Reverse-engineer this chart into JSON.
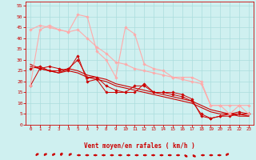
{
  "bg_color": "#cff0f0",
  "grid_color": "#aadddd",
  "xlabel": "Vent moyen/en rafales ( km/h )",
  "xlabel_color": "#cc0000",
  "tick_color": "#cc0000",
  "ylim": [
    0,
    57
  ],
  "xlim": [
    -0.5,
    23.5
  ],
  "yticks": [
    0,
    5,
    10,
    15,
    20,
    25,
    30,
    35,
    40,
    45,
    50,
    55
  ],
  "xticks": [
    0,
    1,
    2,
    3,
    4,
    5,
    6,
    7,
    8,
    9,
    10,
    11,
    12,
    13,
    14,
    15,
    16,
    17,
    18,
    19,
    20,
    21,
    22,
    23
  ],
  "lines": [
    {
      "x": [
        0,
        1,
        2,
        3,
        4,
        5,
        6,
        7,
        8,
        9,
        10,
        11,
        12,
        13,
        14,
        15,
        16,
        17,
        18,
        19,
        20,
        21,
        22,
        23
      ],
      "y": [
        28,
        26,
        25,
        24,
        26,
        25,
        23,
        22,
        21,
        19,
        18,
        17,
        16,
        15,
        14,
        13,
        12,
        11,
        9,
        7,
        6,
        5,
        5,
        4
      ],
      "color": "#cc0000",
      "lw": 0.8,
      "marker": null
    },
    {
      "x": [
        0,
        1,
        2,
        3,
        4,
        5,
        6,
        7,
        8,
        9,
        10,
        11,
        12,
        13,
        14,
        15,
        16,
        17,
        18,
        19,
        20,
        21,
        22,
        23
      ],
      "y": [
        27,
        26,
        25,
        24,
        25,
        24,
        22,
        21,
        20,
        18,
        17,
        16,
        15,
        14,
        13,
        12,
        11,
        10,
        8,
        6,
        5,
        5,
        4,
        4
      ],
      "color": "#cc0000",
      "lw": 0.8,
      "marker": null
    },
    {
      "x": [
        0,
        1,
        2,
        3,
        4,
        5,
        6,
        7,
        8,
        9,
        10,
        11,
        12,
        13,
        14,
        15,
        16,
        17,
        18,
        19,
        20,
        21,
        22,
        23
      ],
      "y": [
        18,
        26,
        27,
        26,
        25,
        32,
        20,
        21,
        15,
        15,
        15,
        15,
        19,
        15,
        15,
        15,
        14,
        12,
        4,
        3,
        4,
        5,
        6,
        5
      ],
      "color": "#cc0000",
      "lw": 0.7,
      "marker": "D",
      "ms": 1.8
    },
    {
      "x": [
        0,
        1,
        2,
        3,
        4,
        5,
        6,
        7,
        8,
        9,
        10,
        11,
        12,
        13,
        14,
        15,
        16,
        17,
        18,
        19,
        20,
        21,
        22,
        23
      ],
      "y": [
        26,
        27,
        25,
        25,
        26,
        30,
        22,
        22,
        18,
        16,
        15,
        18,
        18,
        15,
        15,
        14,
        13,
        11,
        5,
        3,
        4,
        4,
        5,
        5
      ],
      "color": "#cc0000",
      "lw": 0.7,
      "marker": "D",
      "ms": 1.8
    },
    {
      "x": [
        0,
        1,
        2,
        3,
        4,
        5,
        6,
        7,
        8,
        9,
        10,
        11,
        12,
        13,
        14,
        15,
        16,
        17,
        18,
        19,
        20,
        21,
        22,
        23
      ],
      "y": [
        18,
        44,
        46,
        44,
        43,
        51,
        50,
        34,
        30,
        22,
        45,
        42,
        28,
        26,
        25,
        22,
        22,
        22,
        20,
        9,
        9,
        5,
        9,
        5
      ],
      "color": "#ffaaaa",
      "lw": 0.8,
      "marker": "D",
      "ms": 1.8
    },
    {
      "x": [
        0,
        1,
        2,
        3,
        4,
        5,
        6,
        7,
        8,
        9,
        10,
        11,
        12,
        13,
        14,
        15,
        16,
        17,
        18,
        19,
        20,
        21,
        22,
        23
      ],
      "y": [
        44,
        46,
        45,
        44,
        43,
        44,
        40,
        36,
        33,
        29,
        28,
        26,
        25,
        24,
        23,
        22,
        21,
        20,
        19,
        9,
        9,
        9,
        9,
        9
      ],
      "color": "#ffaaaa",
      "lw": 0.8,
      "marker": "D",
      "ms": 1.8
    }
  ],
  "wind_dirs": [
    225,
    225,
    225,
    202,
    225,
    270,
    270,
    270,
    270,
    270,
    270,
    270,
    270,
    270,
    270,
    270,
    270,
    270,
    315,
    315,
    270,
    270,
    270,
    225
  ]
}
